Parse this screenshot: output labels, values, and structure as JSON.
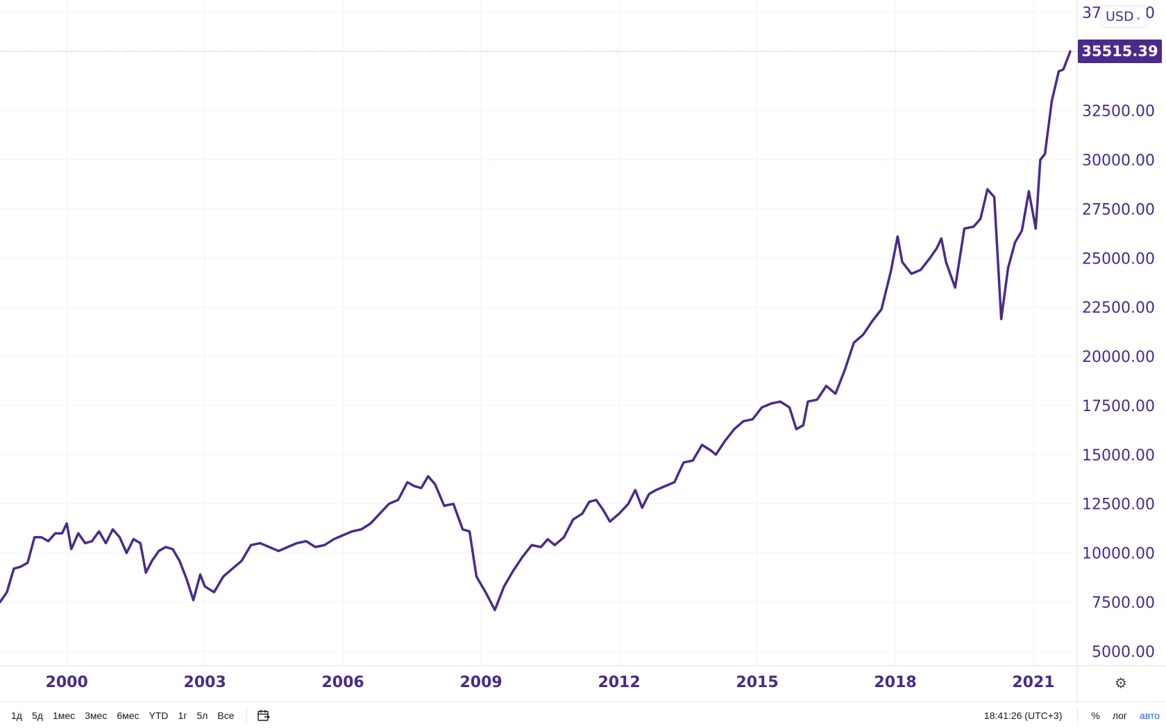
{
  "currency": {
    "label": "USD"
  },
  "last_price": "35515.39",
  "toolbar": {
    "ranges": [
      "1д",
      "5д",
      "1мес",
      "3мес",
      "6мес",
      "YTD",
      "1г",
      "5л",
      "Все"
    ],
    "clock": "18:41:26 (UTC+3)",
    "percent": "%",
    "log": "лог",
    "auto": "авто"
  },
  "chart_data": {
    "type": "line",
    "grid": true,
    "line_color": "#4a2a8c",
    "y_tick_labels": [
      "5000.00",
      "7500.00",
      "10000.00",
      "12500.00",
      "15000.00",
      "17500.00",
      "20000.00",
      "22500.00",
      "25000.00",
      "27500.00",
      "30000.00",
      "32500.00",
      "37500.00"
    ],
    "y_tick_values": [
      5000,
      7500,
      10000,
      12500,
      15000,
      17500,
      20000,
      22500,
      25000,
      27500,
      30000,
      32500,
      37500
    ],
    "x_tick_labels": [
      "2000",
      "2003",
      "2006",
      "2009",
      "2012",
      "2015",
      "2018",
      "2021"
    ],
    "x_tick_values": [
      2000,
      2003,
      2006,
      2009,
      2012,
      2015,
      2018,
      2021
    ],
    "xlim": [
      1998.55,
      2021.95
    ],
    "ylim": [
      4270,
      38130
    ],
    "series": [
      {
        "x": [
          1998.55,
          1998.7,
          1998.85,
          1999.0,
          1999.15,
          1999.3,
          1999.45,
          1999.6,
          1999.75,
          1999.9,
          2000.0,
          2000.1,
          2000.25,
          2000.4,
          2000.55,
          2000.7,
          2000.85,
          2001.0,
          2001.15,
          2001.3,
          2001.45,
          2001.6,
          2001.72,
          2001.85,
          2002.0,
          2002.15,
          2002.3,
          2002.45,
          2002.6,
          2002.75,
          2002.9,
          2003.0,
          2003.2,
          2003.4,
          2003.6,
          2003.8,
          2004.0,
          2004.2,
          2004.4,
          2004.6,
          2004.8,
          2005.0,
          2005.2,
          2005.4,
          2005.6,
          2005.8,
          2006.0,
          2006.2,
          2006.4,
          2006.6,
          2006.8,
          2007.0,
          2007.2,
          2007.4,
          2007.55,
          2007.7,
          2007.85,
          2008.0,
          2008.2,
          2008.4,
          2008.6,
          2008.75,
          2008.9,
          2009.1,
          2009.3,
          2009.5,
          2009.7,
          2009.9,
          2010.1,
          2010.3,
          2010.45,
          2010.6,
          2010.8,
          2011.0,
          2011.2,
          2011.35,
          2011.5,
          2011.65,
          2011.8,
          2012.0,
          2012.2,
          2012.35,
          2012.5,
          2012.65,
          2012.8,
          2013.0,
          2013.2,
          2013.4,
          2013.6,
          2013.8,
          2014.0,
          2014.1,
          2014.3,
          2014.5,
          2014.7,
          2014.9,
          2015.1,
          2015.3,
          2015.5,
          2015.7,
          2015.85,
          2016.0,
          2016.1,
          2016.3,
          2016.5,
          2016.7,
          2016.9,
          2017.1,
          2017.3,
          2017.5,
          2017.7,
          2017.9,
          2018.05,
          2018.15,
          2018.35,
          2018.55,
          2018.75,
          2018.9,
          2019.0,
          2019.1,
          2019.3,
          2019.5,
          2019.7,
          2019.85,
          2020.0,
          2020.15,
          2020.3,
          2020.45,
          2020.6,
          2020.75,
          2020.9,
          2021.05,
          2021.15,
          2021.25,
          2021.4,
          2021.55,
          2021.65,
          2021.8
        ],
        "y": [
          7500,
          8000,
          9200,
          9300,
          9500,
          10800,
          10800,
          10600,
          11000,
          11000,
          11500,
          10200,
          11000,
          10500,
          10600,
          11100,
          10500,
          11200,
          10800,
          10000,
          10700,
          10500,
          9000,
          9600,
          10100,
          10300,
          10200,
          9600,
          8700,
          7600,
          8900,
          8300,
          8000,
          8800,
          9200,
          9600,
          10400,
          10500,
          10300,
          10100,
          10300,
          10500,
          10600,
          10300,
          10400,
          10700,
          10900,
          11100,
          11200,
          11500,
          12000,
          12500,
          12700,
          13600,
          13400,
          13300,
          13900,
          13500,
          12400,
          12500,
          11200,
          11100,
          8800,
          8000,
          7100,
          8300,
          9100,
          9800,
          10400,
          10300,
          10700,
          10400,
          10800,
          11700,
          12000,
          12600,
          12700,
          12200,
          11600,
          12000,
          12500,
          13200,
          12300,
          13000,
          13200,
          13400,
          13600,
          14600,
          14700,
          15500,
          15200,
          15000,
          15700,
          16300,
          16700,
          16800,
          17400,
          17600,
          17700,
          17400,
          16300,
          16500,
          17700,
          17800,
          18500,
          18100,
          19300,
          20700,
          21100,
          21800,
          22400,
          24300,
          26100,
          24800,
          24200,
          24400,
          25000,
          25500,
          26000,
          24800,
          23500,
          26500,
          26600,
          27000,
          28500,
          28100,
          21900,
          24500,
          25800,
          26400,
          28400,
          26500,
          30000,
          30300,
          33000,
          34500,
          34600,
          35515
        ]
      }
    ]
  }
}
